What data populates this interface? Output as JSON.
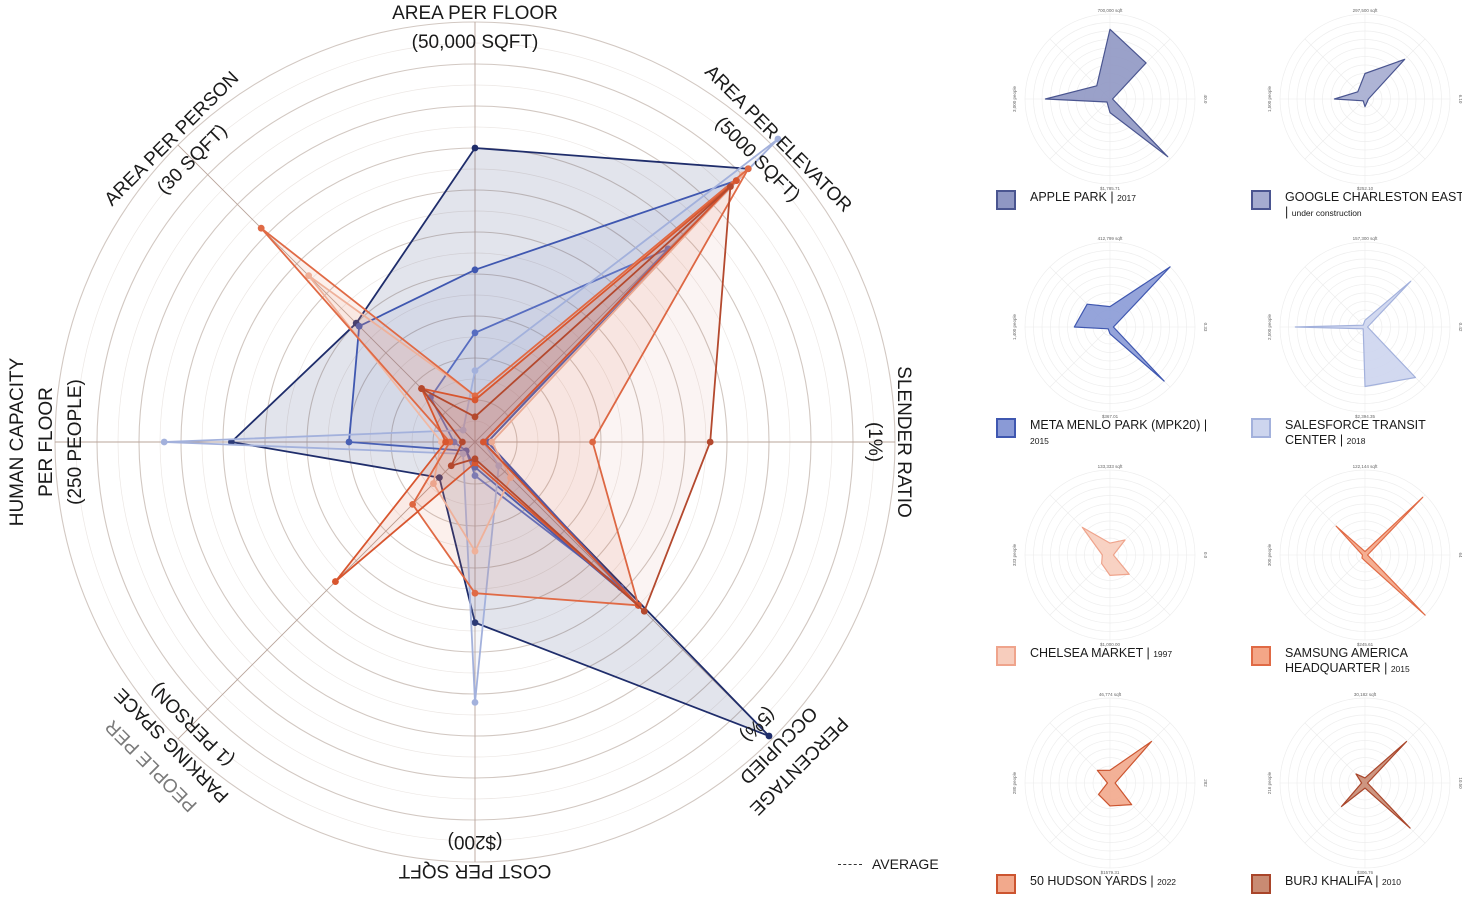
{
  "chart_data": {
    "type": "radar",
    "ring_count": 10,
    "axes": [
      {
        "key": "area_floor",
        "label_lines": [
          "AREA PER FLOOR",
          "(50,000 SQFT)"
        ]
      },
      {
        "key": "area_elevator",
        "label_lines": [
          "AREA PER ELEVATOR",
          "(5000 SQFT)"
        ]
      },
      {
        "key": "slender",
        "label_lines": [
          "SLENDER RATIO",
          "(1%)"
        ]
      },
      {
        "key": "occupied",
        "label_lines": [
          "PERCENTAGE",
          "OCCUPIED",
          "(5%)"
        ]
      },
      {
        "key": "cost",
        "label_lines": [
          "COST PER SQFT",
          "($200)"
        ]
      },
      {
        "key": "parking",
        "label_lines": [
          "PEOPLE PER",
          "PARKING SPACE",
          "(1 PERSON)"
        ]
      },
      {
        "key": "capacity",
        "label_lines": [
          "HUMAN CAPACITY",
          "PER FLOOR",
          "(250 PEOPLE)"
        ]
      },
      {
        "key": "area_person",
        "label_lines": [
          "AREA PER PERSON",
          "(30 SQFT)"
        ]
      }
    ],
    "series": [
      {
        "name": "APPLE PARK",
        "year": "2017",
        "color": "#1f2d6b",
        "fill_opacity": 0.13,
        "values": [
          7.0,
          9.2,
          0.2,
          9.9,
          4.3,
          1.2,
          5.8,
          4.0
        ]
      },
      {
        "name": "GOOGLE CHARLESTON EAST",
        "year": "under construction",
        "color": "#5a6fc2",
        "fill_opacity": 0.06,
        "values": [
          2.6,
          6.5,
          0.3,
          4.9,
          0.8,
          0.3,
          0.5,
          1.5
        ]
      },
      {
        "name": "META MENLO PARK (MPK20)",
        "year": "2015",
        "color": "#3f57b0",
        "fill_opacity": 0.08,
        "values": [
          4.1,
          8.8,
          0.3,
          5.5,
          0.6,
          0.3,
          3.0,
          3.9
        ]
      },
      {
        "name": "SALESFORCE TRANSIT CENTER",
        "year": "2018",
        "color": "#a3b1dc",
        "fill_opacity": 0.1,
        "values": [
          1.7,
          10.2,
          0.2,
          0.8,
          6.2,
          0.4,
          7.4,
          0.4
        ]
      },
      {
        "name": "CHELSEA MARKET",
        "year": "1997",
        "color": "#f1b9a4",
        "fill_opacity": 0.12,
        "values": [
          1.1,
          9.0,
          0.4,
          1.2,
          2.6,
          1.4,
          0.8,
          5.6
        ]
      },
      {
        "name": "SAMSUNG AMERICA HEADQUARTER",
        "year": "2015",
        "color": "#e06a45",
        "fill_opacity": 0.1,
        "values": [
          1.1,
          9.2,
          2.8,
          5.5,
          3.6,
          2.1,
          0.6,
          7.2
        ]
      },
      {
        "name": "50 HUDSON YARDS",
        "year": "2022",
        "color": "#d8562f",
        "fill_opacity": 0.12,
        "values": [
          1.0,
          8.8,
          0.2,
          5.5,
          0.5,
          4.7,
          0.7,
          1.8
        ]
      },
      {
        "name": "BURJ KHALIFA",
        "year": "2010",
        "color": "#b4492e",
        "fill_opacity": 0.06,
        "values": [
          0.6,
          8.6,
          5.6,
          5.7,
          0.4,
          0.8,
          0.3,
          1.8
        ]
      }
    ]
  },
  "average_legend": {
    "label": "AVERAGE"
  },
  "minis": [
    {
      "name": "APPLE PARK",
      "year": "2017",
      "color": "#4a5590",
      "fill": "#8f97c3",
      "top_label": "700,000 sqft",
      "bottom_label": "$1,785.71",
      "left_label": "3,000 people",
      "right_label": "40.0",
      "values": [
        8.2,
        6.0,
        0.3,
        9.6,
        1.6,
        0.5,
        7.6,
        2.2
      ]
    },
    {
      "name": "GOOGLE CHARLESTON EAST",
      "year": "under construction",
      "color": "#4a5590",
      "fill": "#a5acd0",
      "top_label": "297,500 sqft",
      "bottom_label": "$252.10",
      "left_label": "1,500 people",
      "right_label": "6.10",
      "values": [
        3.0,
        6.6,
        0.4,
        0.4,
        0.9,
        0.3,
        3.6,
        1.2
      ]
    },
    {
      "name": "META MENLO PARK (MPK20)",
      "year": "2015",
      "color": "#3f57b0",
      "fill": "#8a9ad6",
      "top_label": "412,799 sqft",
      "bottom_label": "$367.01",
      "left_label": "1,400 people",
      "right_label": "0.33",
      "values": [
        2.4,
        10.0,
        0.4,
        9.0,
        0.8,
        0.3,
        4.2,
        3.8
      ]
    },
    {
      "name": "SALESFORCE TRANSIT CENTER",
      "year": "2018",
      "color": "#a3b1dc",
      "fill": "#cdd5ee",
      "top_label": "157,300 sqft",
      "bottom_label": "$2,394.35",
      "left_label": "2,500 people",
      "right_label": "0.42",
      "values": [
        0.8,
        7.6,
        0.3,
        8.4,
        7.0,
        0.3,
        8.2,
        0.3
      ]
    },
    {
      "name": "CHELSEA MARKET",
      "year": "1997",
      "color": "#efa48c",
      "fill": "#f7cdbd",
      "top_label": "133,333 sqft",
      "bottom_label": "$1,000.00",
      "left_label": "333 people",
      "right_label": "0.0",
      "values": [
        1.4,
        2.5,
        0.4,
        3.2,
        2.4,
        1.4,
        0.9,
        4.6
      ]
    },
    {
      "name": "SAMSUNG AMERICA HEADQUARTER",
      "year": "2015",
      "color": "#e06a45",
      "fill": "#f4a687",
      "top_label": "122,144 sqft",
      "bottom_label": "$245.61",
      "left_label": "300 people",
      "right_label": "64",
      "values": [
        0.4,
        9.6,
        0.3,
        10.0,
        0.7,
        0.5,
        0.3,
        4.8
      ]
    },
    {
      "name": "50 HUDSON YARDS",
      "year": "2022",
      "color": "#cc5530",
      "fill": "#f2a98c",
      "top_label": "46,774 sqft",
      "bottom_label": "$1579.31",
      "left_label": "280 people",
      "right_label": "282",
      "values": [
        1.5,
        6.9,
        0.6,
        3.6,
        2.7,
        1.9,
        0.3,
        2.1
      ]
    },
    {
      "name": "BURJ KHALIFA",
      "year": "2010",
      "color": "#a9452a",
      "fill": "#c98b73",
      "top_label": "30,182 sqft",
      "bottom_label": "$306.76",
      "left_label": "216 people",
      "right_label": "10.50",
      "values": [
        0.6,
        6.9,
        0.3,
        7.5,
        0.6,
        3.9,
        0.4,
        1.5
      ]
    }
  ]
}
